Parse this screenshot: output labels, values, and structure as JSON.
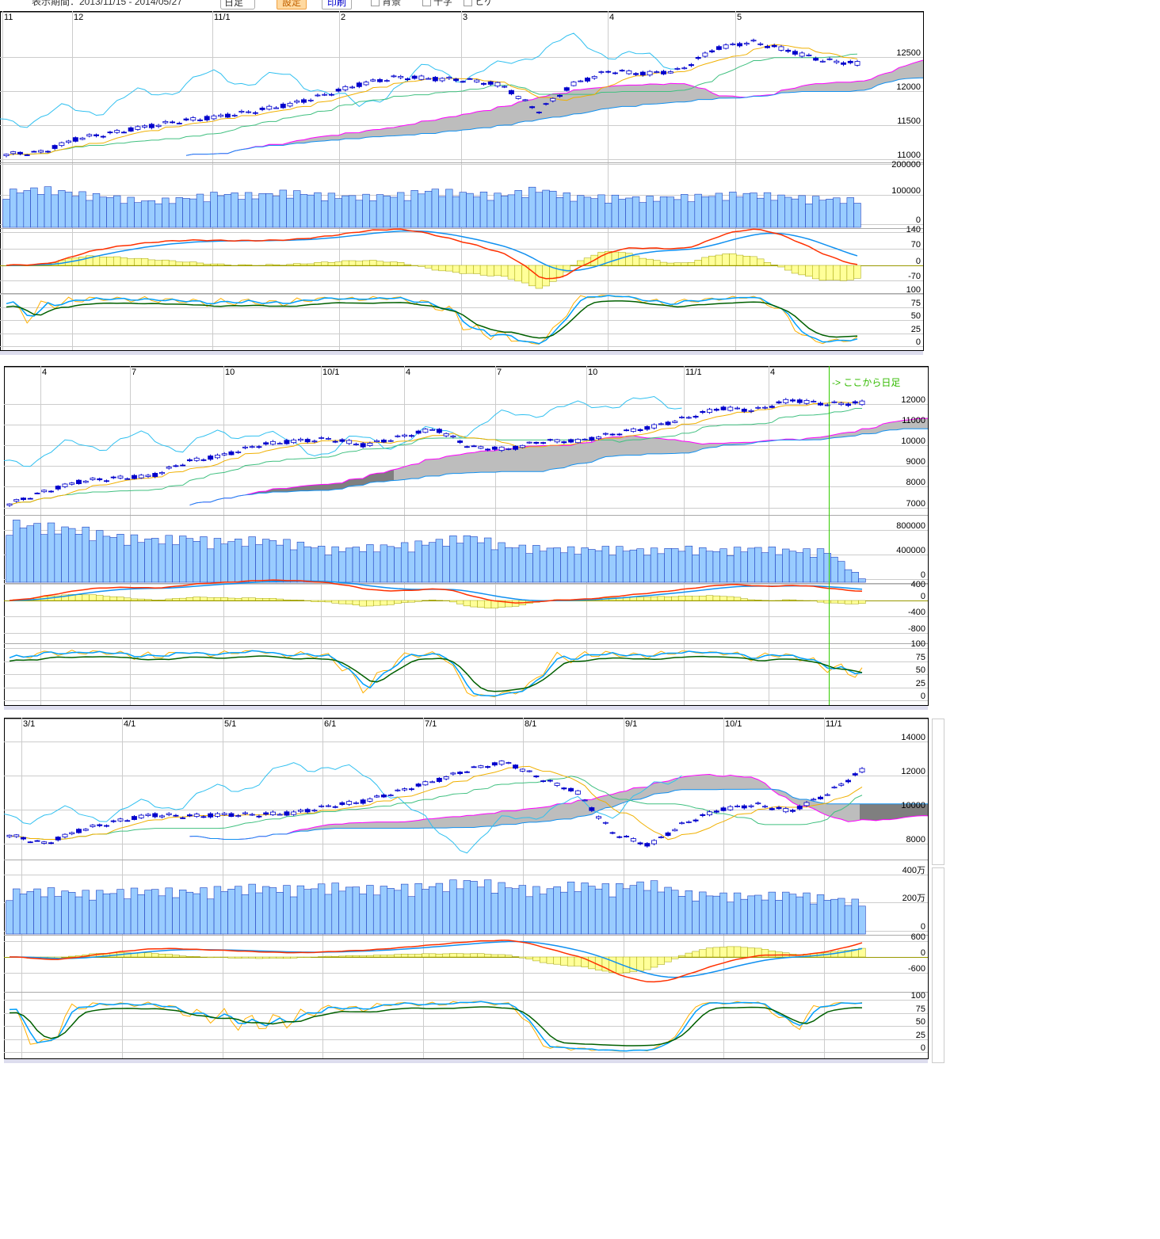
{
  "toolbar": {
    "period_label": "表示期間：2013/11/15 - 2014/05/27",
    "interval_select": "日足",
    "settings_button": "設定",
    "print_button": "印刷",
    "checkbox_1": "背景",
    "checkbox_2": "十字",
    "checkbox_3": "ヒゲ"
  },
  "colors": {
    "candle_down": "#0000cc",
    "candle_up_border": "#0000cc",
    "tenkan": "#f0b000",
    "kijun": "#40c080",
    "chikou": "#30c0f0",
    "span_a": "#ff00ff",
    "span_b": "#1090f0",
    "cloud": "#bdbdbd",
    "cloud_dark": "#7f7f7f",
    "volume": "#99ccff",
    "macd": "#ff3000",
    "signal": "#1090f0",
    "histogram": "#ffff99",
    "stoch_k": "#00a0ff",
    "stoch_d": "#ffb000",
    "stoch_slow": "#006000"
  },
  "chart_data": [
    {
      "type": "candlestick",
      "x_tick_labels": [
        "11",
        "12",
        "11/1",
        "2",
        "3",
        "4",
        "5"
      ],
      "price_ticks": [
        "12500",
        "12000",
        "11500",
        "11000"
      ],
      "ylim": [
        10950,
        13170
      ],
      "closes": [
        11070,
        11100,
        11300,
        11380,
        11480,
        11560,
        11620,
        11700,
        11800,
        11940,
        12100,
        12200,
        12180,
        12160,
        12080,
        11700,
        12100,
        12290,
        12250,
        12300,
        12620,
        12720,
        12600,
        12450,
        12400
      ],
      "volume_ticks": [
        "200000",
        "100000",
        "0"
      ],
      "volumes": [
        110000,
        120000,
        105000,
        95000,
        80000,
        90000,
        105000,
        100000,
        110000,
        100000,
        95000,
        100000,
        115000,
        105000,
        100000,
        120000,
        95000,
        95000,
        90000,
        95000,
        100000,
        105000,
        95000,
        90000,
        85000
      ],
      "macd_ticks": [
        "140",
        "70",
        "0",
        "-70"
      ],
      "stoch_ticks": [
        "100",
        "75",
        "50",
        "25",
        "0"
      ]
    },
    {
      "type": "candlestick",
      "x_tick_labels": [
        "4",
        "7",
        "10",
        "10/1",
        "4",
        "7",
        "10",
        "11/1",
        "4"
      ],
      "price_ticks": [
        "12000",
        "11000",
        "10000",
        "9000",
        "8000",
        "7000"
      ],
      "ylim": [
        6615,
        13540
      ],
      "closes": [
        7150,
        7750,
        8250,
        8400,
        8500,
        9200,
        9500,
        10000,
        10200,
        10300,
        10000,
        10400,
        10800,
        9900,
        9800,
        10200,
        10200,
        10550,
        10850,
        11300,
        11800,
        11700,
        12200,
        12000,
        12050
      ],
      "volume_ticks": [
        "800000",
        "400000",
        "0"
      ],
      "volumes": [
        900000,
        850000,
        800000,
        700000,
        650000,
        680000,
        620000,
        650000,
        600000,
        500000,
        530000,
        560000,
        620000,
        700000,
        550000,
        520000,
        500000,
        520000,
        480000,
        520000,
        480000,
        520000,
        480000,
        480000,
        60000
      ],
      "macd_ticks": [
        "400",
        "0",
        "-400",
        "-800"
      ],
      "stoch_ticks": [
        "100",
        "75",
        "50",
        "25",
        "0"
      ],
      "annotation": "-> ここから日足"
    },
    {
      "type": "candlestick",
      "x_tick_labels": [
        "3/1",
        "4/1",
        "5/1",
        "6/1",
        "7/1",
        "8/1",
        "9/1",
        "10/1",
        "11/1"
      ],
      "price_ticks": [
        "14000",
        "12000",
        "10000",
        "8000"
      ],
      "ylim": [
        7070,
        15400
      ],
      "closes": [
        8500,
        8000,
        8800,
        9300,
        9700,
        9600,
        9700,
        9700,
        9800,
        10200,
        10500,
        11100,
        11700,
        12400,
        12800,
        11800,
        11000,
        8600,
        7900,
        9200,
        10000,
        10300,
        9900,
        10900,
        12300
      ],
      "volume_ticks": [
        "400万",
        "200万",
        "0"
      ],
      "volumes": [
        2800000,
        2900000,
        2700000,
        2800000,
        2900000,
        2800000,
        3000000,
        3100000,
        3000000,
        3200000,
        3000000,
        3100000,
        3200000,
        3500000,
        3200000,
        2900000,
        3300000,
        3100000,
        3400000,
        2700000,
        2600000,
        2500000,
        2700000,
        2400000,
        2100000
      ],
      "macd_ticks": [
        "600",
        "0",
        "-600"
      ],
      "stoch_ticks": [
        "100",
        "75",
        "50",
        "25",
        "0"
      ]
    }
  ]
}
